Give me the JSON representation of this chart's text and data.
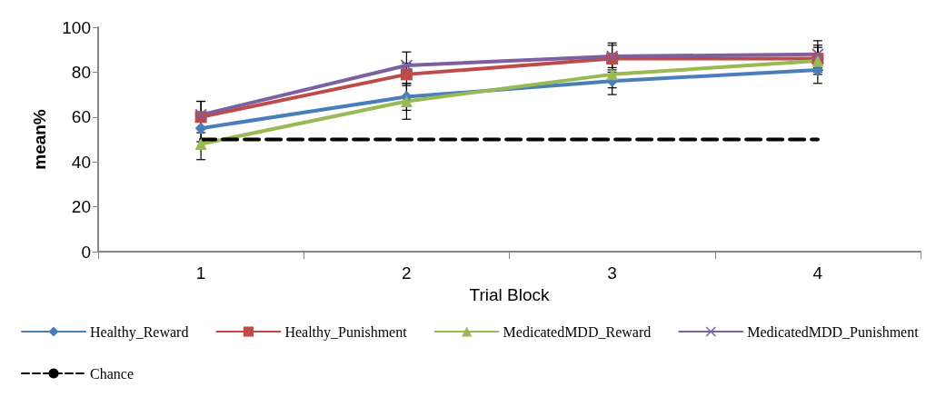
{
  "chart_data": {
    "type": "line",
    "xlabel": "Trial Block",
    "ylabel": "mean%",
    "categories": [
      "1",
      "2",
      "3",
      "4"
    ],
    "ylim": [
      0,
      100
    ],
    "yticks": [
      0,
      20,
      40,
      60,
      80,
      100
    ],
    "grid": false,
    "legend": "bottom",
    "series": [
      {
        "name": "Healthy_Reward",
        "color": "#4a7ebb",
        "marker": "diamond",
        "values": [
          55,
          69,
          76,
          81
        ],
        "errors": [
          6,
          6,
          6,
          6
        ]
      },
      {
        "name": "Healthy_Punishment",
        "color": "#be4b48",
        "marker": "square",
        "values": [
          60,
          79,
          86,
          86
        ],
        "errors": [
          7,
          5,
          6,
          6
        ]
      },
      {
        "name": "MedicatedMDD_Reward",
        "color": "#98b954",
        "marker": "triangle",
        "values": [
          48,
          67,
          79,
          85
        ],
        "errors": [
          7,
          8,
          6,
          6
        ]
      },
      {
        "name": "MedicatedMDD_Punishment",
        "color": "#7d60a0",
        "marker": "cross",
        "values": [
          61,
          83,
          87,
          88
        ],
        "errors": [
          6,
          6,
          6,
          6
        ]
      },
      {
        "name": "Chance",
        "color": "#000000",
        "marker": "none",
        "line_style": "dashed",
        "values": [
          50,
          50,
          50,
          50
        ]
      }
    ]
  }
}
